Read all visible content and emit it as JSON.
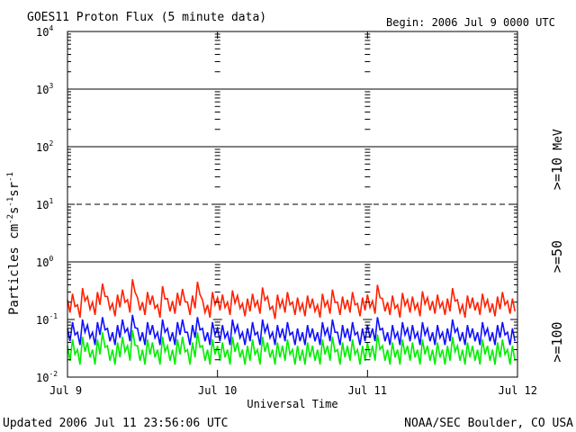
{
  "header": {
    "title": "GOES11 Proton Flux (5 minute data)",
    "begin": "Begin: 2006 Jul 9 0000 UTC"
  },
  "footer": {
    "updated": "Updated 2006 Jul 11 23:56:06 UTC",
    "source": "NOAA/SEC Boulder, CO USA"
  },
  "colors": {
    "ge10": "#ff2000",
    "ge50": "#1010ff",
    "ge100": "#00ee00",
    "axis": "#000000"
  },
  "chart_data": {
    "type": "line",
    "title": "GOES11 Proton Flux (5 minute data)",
    "xlabel": "Universal Time",
    "ylabel_parts": {
      "lead": "Particles cm",
      "e1": "-2",
      "s": "s",
      "e2": "-1",
      "sr": "sr",
      "e3": "-1"
    },
    "yscale": "log",
    "ylim": [
      0.01,
      10000
    ],
    "y_ticks": [
      {
        "base": "10",
        "exp": "-2",
        "value": 0.01
      },
      {
        "base": "10",
        "exp": "-1",
        "value": 0.1
      },
      {
        "base": "10",
        "exp": "0",
        "value": 1
      },
      {
        "base": "10",
        "exp": "1",
        "value": 10
      },
      {
        "base": "10",
        "exp": "2",
        "value": 100
      },
      {
        "base": "10",
        "exp": "3",
        "value": 1000
      },
      {
        "base": "10",
        "exp": "4",
        "value": 10000
      }
    ],
    "x_ticks": [
      "Jul 9",
      "Jul 10",
      "Jul 11",
      "Jul 12"
    ],
    "xlim": [
      "2006-07-09 00:00",
      "2006-07-12 00:00"
    ],
    "reference_lines": [
      {
        "value": 1,
        "style": "solid"
      },
      {
        "value": 10,
        "style": "dashed"
      },
      {
        "value": 100,
        "style": "solid"
      },
      {
        "value": 1000,
        "style": "solid"
      }
    ],
    "legend_unit": "MeV",
    "series": [
      {
        "name": ">=10",
        "color": "#ff2000",
        "values": [
          0.22,
          0.28,
          0.18,
          0.35,
          0.25,
          0.2,
          0.3,
          0.42,
          0.25,
          0.19,
          0.27,
          0.33,
          0.22,
          0.5,
          0.24,
          0.2,
          0.3,
          0.26,
          0.18,
          0.38,
          0.23,
          0.21,
          0.29,
          0.34,
          0.2,
          0.26,
          0.45,
          0.22,
          0.18,
          0.3,
          0.24,
          0.27,
          0.2,
          0.32,
          0.26,
          0.19,
          0.23,
          0.28,
          0.21,
          0.36,
          0.25,
          0.17,
          0.27,
          0.22,
          0.3,
          0.2,
          0.24,
          0.19,
          0.26,
          0.23,
          0.18,
          0.28,
          0.21,
          0.33,
          0.2,
          0.25,
          0.22,
          0.3,
          0.19,
          0.24,
          0.27,
          0.21,
          0.4,
          0.23,
          0.2,
          0.26,
          0.18,
          0.29,
          0.22,
          0.25,
          0.19,
          0.31,
          0.24,
          0.21,
          0.27,
          0.2,
          0.23,
          0.35,
          0.22,
          0.18,
          0.26,
          0.24,
          0.2,
          0.28,
          0.22,
          0.19,
          0.25,
          0.3,
          0.21,
          0.23
        ],
        "x_start": "2006-07-09 00:00",
        "x_end": "2006-07-12 00:00"
      },
      {
        "name": ">=50",
        "color": "#1010ff",
        "values": [
          0.07,
          0.09,
          0.06,
          0.1,
          0.08,
          0.06,
          0.09,
          0.11,
          0.07,
          0.06,
          0.08,
          0.1,
          0.07,
          0.12,
          0.07,
          0.06,
          0.09,
          0.08,
          0.06,
          0.1,
          0.07,
          0.06,
          0.09,
          0.1,
          0.06,
          0.08,
          0.11,
          0.07,
          0.06,
          0.09,
          0.07,
          0.08,
          0.06,
          0.1,
          0.08,
          0.06,
          0.07,
          0.09,
          0.06,
          0.1,
          0.08,
          0.06,
          0.08,
          0.07,
          0.09,
          0.06,
          0.07,
          0.06,
          0.08,
          0.07,
          0.06,
          0.09,
          0.07,
          0.1,
          0.06,
          0.08,
          0.07,
          0.09,
          0.06,
          0.07,
          0.08,
          0.07,
          0.11,
          0.07,
          0.06,
          0.08,
          0.06,
          0.09,
          0.07,
          0.08,
          0.06,
          0.09,
          0.07,
          0.06,
          0.08,
          0.06,
          0.07,
          0.1,
          0.07,
          0.06,
          0.08,
          0.07,
          0.06,
          0.09,
          0.07,
          0.06,
          0.08,
          0.09,
          0.06,
          0.07
        ],
        "x_start": "2006-07-09 00:00",
        "x_end": "2006-07-12 00:00"
      },
      {
        "name": ">=100",
        "color": "#00ee00",
        "values": [
          0.035,
          0.045,
          0.03,
          0.05,
          0.04,
          0.03,
          0.045,
          0.06,
          0.035,
          0.03,
          0.04,
          0.05,
          0.035,
          0.065,
          0.035,
          0.03,
          0.045,
          0.04,
          0.03,
          0.05,
          0.035,
          0.03,
          0.045,
          0.05,
          0.03,
          0.04,
          0.06,
          0.035,
          0.03,
          0.045,
          0.035,
          0.04,
          0.03,
          0.05,
          0.04,
          0.03,
          0.035,
          0.045,
          0.03,
          0.05,
          0.04,
          0.03,
          0.04,
          0.035,
          0.045,
          0.03,
          0.035,
          0.03,
          0.04,
          0.035,
          0.03,
          0.045,
          0.035,
          0.05,
          0.03,
          0.04,
          0.035,
          0.045,
          0.03,
          0.035,
          0.04,
          0.035,
          0.055,
          0.035,
          0.03,
          0.04,
          0.03,
          0.045,
          0.035,
          0.04,
          0.03,
          0.045,
          0.035,
          0.03,
          0.04,
          0.03,
          0.035,
          0.05,
          0.035,
          0.03,
          0.04,
          0.035,
          0.03,
          0.045,
          0.035,
          0.03,
          0.04,
          0.045,
          0.03,
          0.035
        ],
        "x_start": "2006-07-09 00:00",
        "x_end": "2006-07-12 00:00"
      }
    ]
  }
}
